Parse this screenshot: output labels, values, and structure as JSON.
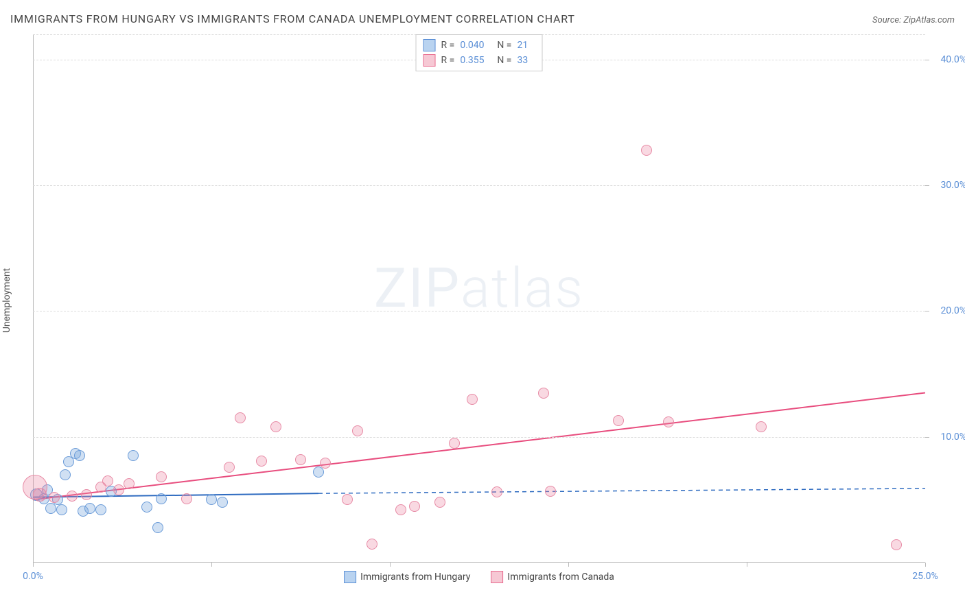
{
  "title": "IMMIGRANTS FROM HUNGARY VS IMMIGRANTS FROM CANADA UNEMPLOYMENT CORRELATION CHART",
  "source": "Source: ZipAtlas.com",
  "watermark": {
    "left": "ZIP",
    "right": "atlas"
  },
  "chart": {
    "type": "scatter",
    "y_axis_label": "Unemployment",
    "background_color": "#ffffff",
    "grid_color": "#dcdcdc",
    "axis_color": "#bbbbbb",
    "tick_label_color": "#5b8fd6",
    "xlim": [
      0,
      25
    ],
    "ylim": [
      0,
      42
    ],
    "x_ticks": [
      0,
      5,
      10,
      15,
      20,
      25
    ],
    "x_tick_labels": [
      "0.0%",
      "",
      "",
      "",
      "",
      "25.0%"
    ],
    "y_ticks": [
      10,
      20,
      30,
      40
    ],
    "y_tick_labels": [
      "10.0%",
      "20.0%",
      "30.0%",
      "40.0%"
    ],
    "series": [
      {
        "name": "Immigrants from Hungary",
        "swatch_fill": "#b9d3f0",
        "swatch_stroke": "#5b8fd6",
        "point_fill": "rgba(120,165,220,0.35)",
        "point_stroke": "#6a9bd8",
        "R": "0.040",
        "N": "21",
        "trend": {
          "color": "#2e6bc0",
          "solid_from_x": 0,
          "solid_to_x": 8.0,
          "y_start": 5.2,
          "y_end_solid": 5.5,
          "dash_to_x": 25.0,
          "y_end_dash": 5.9,
          "width": 2
        },
        "points": [
          {
            "x": 0.1,
            "y": 5.4,
            "r": 9
          },
          {
            "x": 0.3,
            "y": 5.1,
            "r": 8
          },
          {
            "x": 0.4,
            "y": 5.8,
            "r": 8
          },
          {
            "x": 0.5,
            "y": 4.3,
            "r": 8
          },
          {
            "x": 0.7,
            "y": 5.0,
            "r": 8
          },
          {
            "x": 0.8,
            "y": 4.2,
            "r": 8
          },
          {
            "x": 0.9,
            "y": 7.0,
            "r": 8
          },
          {
            "x": 1.0,
            "y": 8.0,
            "r": 8
          },
          {
            "x": 1.2,
            "y": 8.7,
            "r": 8
          },
          {
            "x": 1.3,
            "y": 8.5,
            "r": 8
          },
          {
            "x": 1.4,
            "y": 4.1,
            "r": 8
          },
          {
            "x": 1.6,
            "y": 4.3,
            "r": 8
          },
          {
            "x": 1.9,
            "y": 4.2,
            "r": 8
          },
          {
            "x": 2.2,
            "y": 5.7,
            "r": 8
          },
          {
            "x": 2.8,
            "y": 8.5,
            "r": 8
          },
          {
            "x": 3.2,
            "y": 4.4,
            "r": 8
          },
          {
            "x": 3.5,
            "y": 2.8,
            "r": 8
          },
          {
            "x": 3.6,
            "y": 5.1,
            "r": 8
          },
          {
            "x": 5.0,
            "y": 5.0,
            "r": 8
          },
          {
            "x": 5.3,
            "y": 4.8,
            "r": 8
          },
          {
            "x": 8.0,
            "y": 7.2,
            "r": 8
          }
        ]
      },
      {
        "name": "Immigrants from Canada",
        "swatch_fill": "#f6c8d4",
        "swatch_stroke": "#e86a8e",
        "point_fill": "rgba(235,130,160,0.30)",
        "point_stroke": "#e78aa5",
        "R": "0.355",
        "N": "33",
        "trend": {
          "color": "#e84d7e",
          "solid_from_x": 0,
          "solid_to_x": 25.0,
          "y_start": 5.0,
          "y_end_solid": 13.5,
          "width": 2
        },
        "points": [
          {
            "x": 0.05,
            "y": 6.0,
            "r": 18
          },
          {
            "x": 0.2,
            "y": 5.4,
            "r": 10
          },
          {
            "x": 0.6,
            "y": 5.2,
            "r": 8
          },
          {
            "x": 1.1,
            "y": 5.3,
            "r": 8
          },
          {
            "x": 1.5,
            "y": 5.4,
            "r": 8
          },
          {
            "x": 1.9,
            "y": 6.0,
            "r": 8
          },
          {
            "x": 2.1,
            "y": 6.5,
            "r": 8
          },
          {
            "x": 2.4,
            "y": 5.8,
            "r": 8
          },
          {
            "x": 2.7,
            "y": 6.3,
            "r": 8
          },
          {
            "x": 4.3,
            "y": 5.1,
            "r": 8
          },
          {
            "x": 5.5,
            "y": 7.6,
            "r": 8
          },
          {
            "x": 5.8,
            "y": 11.5,
            "r": 8
          },
          {
            "x": 6.4,
            "y": 8.1,
            "r": 8
          },
          {
            "x": 6.8,
            "y": 10.8,
            "r": 8
          },
          {
            "x": 7.5,
            "y": 8.2,
            "r": 8
          },
          {
            "x": 8.2,
            "y": 7.9,
            "r": 8
          },
          {
            "x": 8.8,
            "y": 5.0,
            "r": 8
          },
          {
            "x": 9.1,
            "y": 10.5,
            "r": 8
          },
          {
            "x": 9.5,
            "y": 1.5,
            "r": 8
          },
          {
            "x": 10.3,
            "y": 4.2,
            "r": 8
          },
          {
            "x": 10.7,
            "y": 4.5,
            "r": 8
          },
          {
            "x": 11.4,
            "y": 4.8,
            "r": 8
          },
          {
            "x": 11.8,
            "y": 9.5,
            "r": 8
          },
          {
            "x": 12.3,
            "y": 13.0,
            "r": 8
          },
          {
            "x": 13.0,
            "y": 5.6,
            "r": 8
          },
          {
            "x": 14.3,
            "y": 13.5,
            "r": 8
          },
          {
            "x": 14.5,
            "y": 5.7,
            "r": 8
          },
          {
            "x": 16.4,
            "y": 11.3,
            "r": 8
          },
          {
            "x": 17.2,
            "y": 32.8,
            "r": 8
          },
          {
            "x": 17.8,
            "y": 11.2,
            "r": 8
          },
          {
            "x": 20.4,
            "y": 10.8,
            "r": 8
          },
          {
            "x": 24.2,
            "y": 1.4,
            "r": 8
          },
          {
            "x": 3.6,
            "y": 6.8,
            "r": 8
          }
        ]
      }
    ],
    "bottom_legend": [
      {
        "label": "Immigrants from Hungary",
        "fill": "#b9d3f0",
        "stroke": "#5b8fd6"
      },
      {
        "label": "Immigrants from Canada",
        "fill": "#f6c8d4",
        "stroke": "#e86a8e"
      }
    ]
  }
}
